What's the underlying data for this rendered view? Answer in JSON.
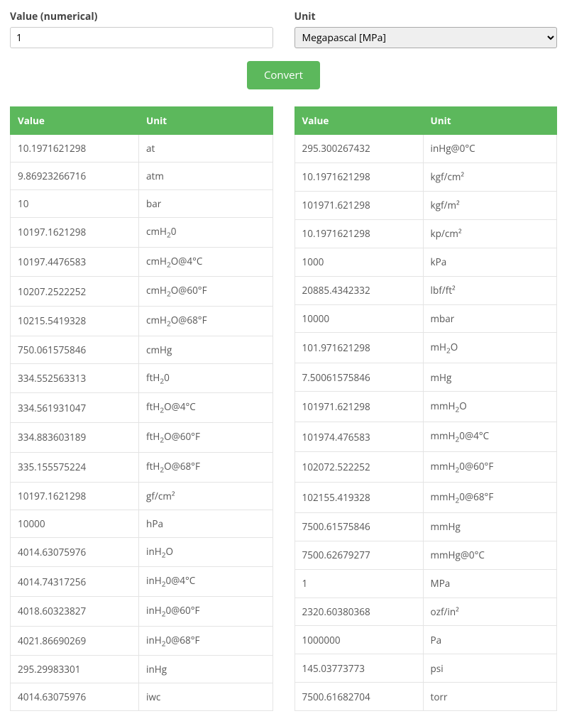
{
  "form": {
    "value_label": "Value (numerical)",
    "value": "1",
    "unit_label": "Unit",
    "unit_selected": "Megapascal [MPa]"
  },
  "buttons": {
    "convert": "Convert"
  },
  "headers": {
    "value": "Value",
    "unit": "Unit"
  },
  "left_rows": [
    {
      "value": "10.1971621298",
      "unit": "at"
    },
    {
      "value": "9.86923266716",
      "unit": "atm"
    },
    {
      "value": "10",
      "unit": "bar"
    },
    {
      "value": "10197.1621298",
      "unit": "cmH₂0"
    },
    {
      "value": "10197.4476583",
      "unit": "cmH₂O@4°C"
    },
    {
      "value": "10207.2522252",
      "unit": "cmH₂O@60°F"
    },
    {
      "value": "10215.5419328",
      "unit": "cmH₂O@68°F"
    },
    {
      "value": "750.061575846",
      "unit": "cmHg"
    },
    {
      "value": "334.552563313",
      "unit": "ftH₂0"
    },
    {
      "value": "334.561931047",
      "unit": "ftH₂O@4°C"
    },
    {
      "value": "334.883603189",
      "unit": "ftH₂O@60°F"
    },
    {
      "value": "335.155575224",
      "unit": "ftH₂O@68°F"
    },
    {
      "value": "10197.1621298",
      "unit": "gf/cm²"
    },
    {
      "value": "10000",
      "unit": "hPa"
    },
    {
      "value": "4014.63075976",
      "unit": "inH₂O"
    },
    {
      "value": "4014.74317256",
      "unit": "inH₂0@4°C"
    },
    {
      "value": "4018.60323827",
      "unit": "inH₂0@60°F"
    },
    {
      "value": "4021.86690269",
      "unit": "inH₂0@68°F"
    },
    {
      "value": "295.29983301",
      "unit": "inHg"
    },
    {
      "value": "4014.63075976",
      "unit": "iwc"
    }
  ],
  "right_rows": [
    {
      "value": "295.300267432",
      "unit": "inHg@0°C"
    },
    {
      "value": "10.1971621298",
      "unit": "kgf/cm²"
    },
    {
      "value": "101971.621298",
      "unit": "kgf/m²"
    },
    {
      "value": "10.1971621298",
      "unit": "kp/cm²"
    },
    {
      "value": "1000",
      "unit": "kPa"
    },
    {
      "value": "20885.4342332",
      "unit": "lbf/ft²"
    },
    {
      "value": "10000",
      "unit": "mbar"
    },
    {
      "value": "101.971621298",
      "unit": "mH₂O"
    },
    {
      "value": "7.50061575846",
      "unit": "mHg"
    },
    {
      "value": "101971.621298",
      "unit": "mmH₂O"
    },
    {
      "value": "101974.476583",
      "unit": "mmH₂0@4°C"
    },
    {
      "value": "102072.522252",
      "unit": "mmH₂0@60°F"
    },
    {
      "value": "102155.419328",
      "unit": "mmH₂0@68°F"
    },
    {
      "value": "7500.61575846",
      "unit": "mmHg"
    },
    {
      "value": "7500.62679277",
      "unit": "mmHg@0°C"
    },
    {
      "value": "1",
      "unit": "MPa"
    },
    {
      "value": "2320.60380368",
      "unit": "ozf/in²"
    },
    {
      "value": "1000000",
      "unit": "Pa"
    },
    {
      "value": "145.03773773",
      "unit": "psi"
    },
    {
      "value": "7500.61682704",
      "unit": "torr"
    }
  ],
  "colors": {
    "accent": "#5cb85c",
    "border": "#e4e4e4",
    "text": "#555"
  }
}
